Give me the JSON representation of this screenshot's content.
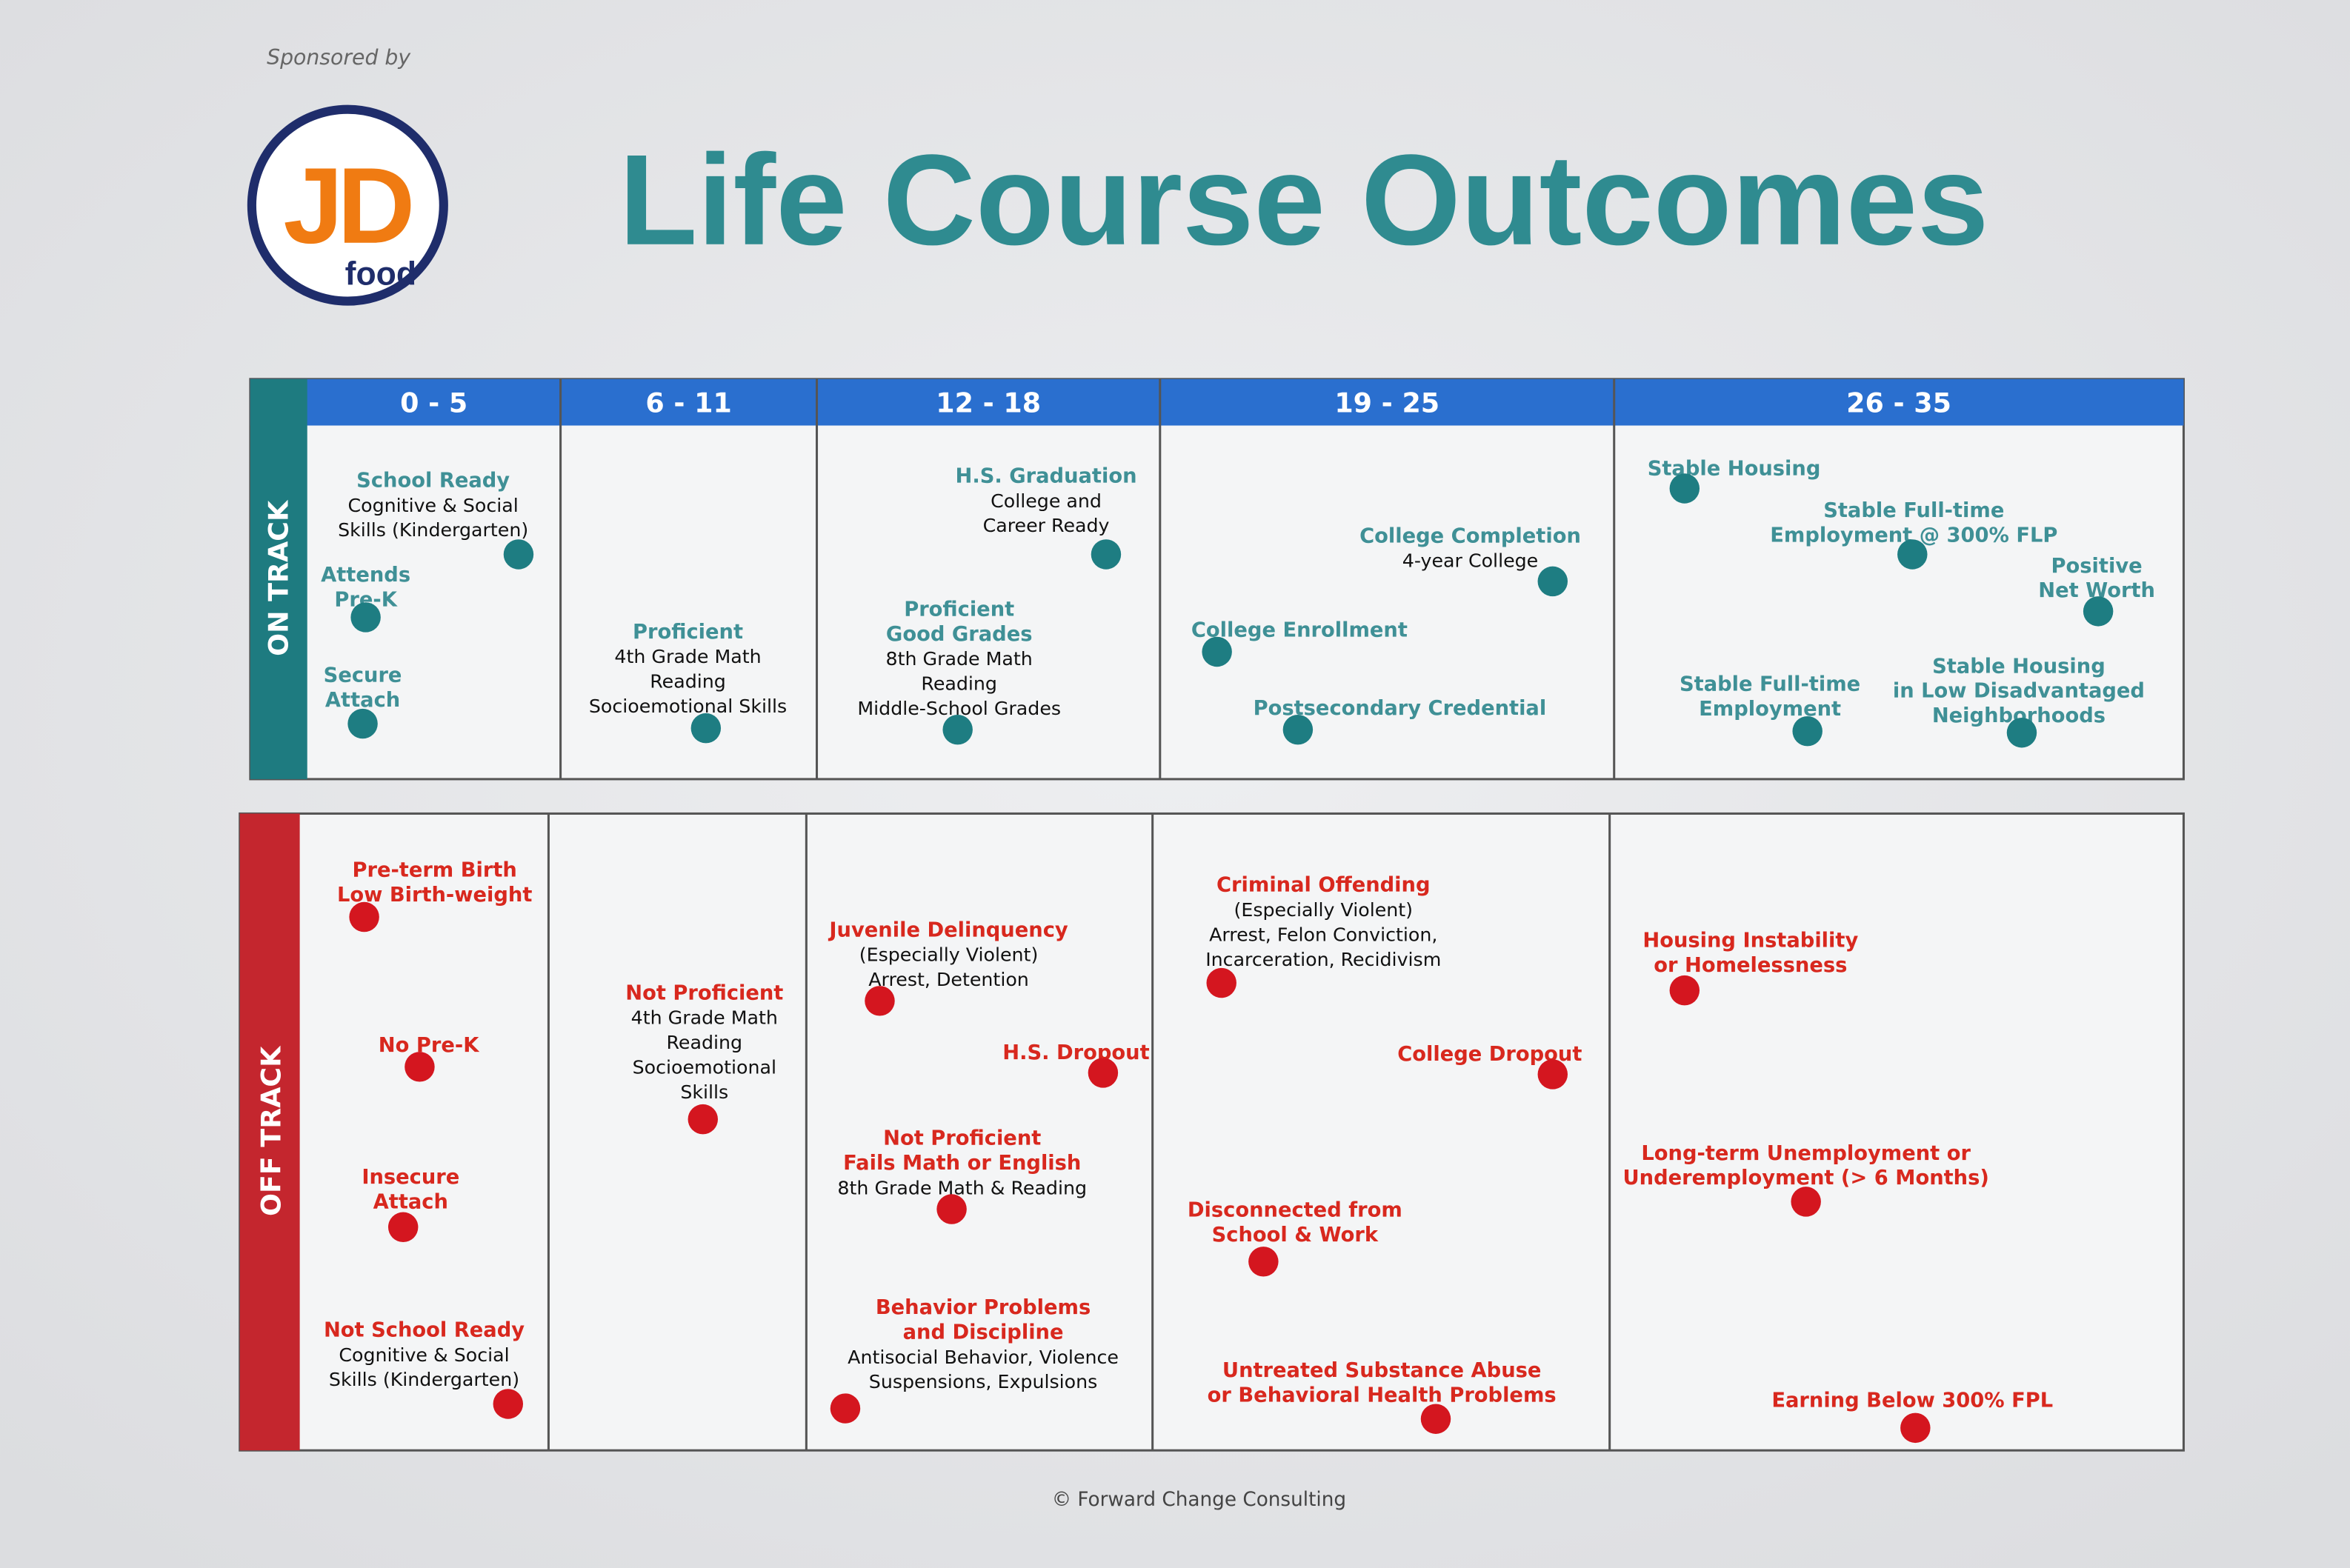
{
  "sponsor": "Sponsored by",
  "logo": {
    "main": "JD",
    "sub": "food"
  },
  "title": "Life Course Outcomes",
  "columns": [
    "0 - 5",
    "6 - 11",
    "12 - 18",
    "19 - 25",
    "26 - 35"
  ],
  "on_track": {
    "label": "ON TRACK",
    "items": [
      {
        "title": [
          "School Ready"
        ],
        "detail": [
          "Cognitive & Social",
          "Skills (Kindergarten)"
        ]
      },
      {
        "title": [
          "Attends",
          "Pre-K"
        ],
        "detail": []
      },
      {
        "title": [
          "Secure",
          "Attach"
        ],
        "detail": []
      },
      {
        "title": [
          "Proficient"
        ],
        "detail": [
          "4th Grade Math",
          "Reading",
          "Socioemotional Skills"
        ]
      },
      {
        "title": [
          "H.S. Graduation"
        ],
        "detail": [
          "College and",
          "Career Ready"
        ]
      },
      {
        "title": [
          "Proficient",
          "Good Grades"
        ],
        "detail": [
          "8th Grade Math",
          "Reading",
          "Middle-School Grades"
        ]
      },
      {
        "title": [
          "College Completion"
        ],
        "detail": [
          "4-year College"
        ]
      },
      {
        "title": [
          "College Enrollment"
        ],
        "detail": []
      },
      {
        "title": [
          "Postsecondary Credential"
        ],
        "detail": []
      },
      {
        "title": [
          "Stable Housing"
        ],
        "detail": []
      },
      {
        "title": [
          "Stable Full-time",
          "Employment @ 300% FLP"
        ],
        "detail": []
      },
      {
        "title": [
          "Positive",
          "Net Worth"
        ],
        "detail": []
      },
      {
        "title": [
          "Stable Full-time",
          "Employment"
        ],
        "detail": []
      },
      {
        "title": [
          "Stable Housing",
          "in Low Disadvantaged",
          "Neighborhoods"
        ],
        "detail": []
      }
    ]
  },
  "off_track": {
    "label": "OFF TRACK",
    "items": [
      {
        "title": [
          "Pre-term Birth",
          "Low Birth-weight"
        ],
        "detail": []
      },
      {
        "title": [
          "No Pre-K"
        ],
        "detail": []
      },
      {
        "title": [
          "Insecure",
          "Attach"
        ],
        "detail": []
      },
      {
        "title": [
          "Not School Ready"
        ],
        "detail": [
          "Cognitive & Social",
          "Skills (Kindergarten)"
        ]
      },
      {
        "title": [
          "Not Proficient"
        ],
        "detail": [
          "4th Grade Math",
          "Reading",
          "Socioemotional",
          "Skills"
        ]
      },
      {
        "title": [
          "Juvenile Delinquency"
        ],
        "detail": [
          "(Especially Violent)",
          "Arrest, Detention"
        ]
      },
      {
        "title": [
          "H.S. Dropout"
        ],
        "detail": []
      },
      {
        "title": [
          "Not Proficient",
          "Fails Math or English"
        ],
        "detail": [
          "8th Grade Math & Reading"
        ]
      },
      {
        "title": [
          "Behavior Problems",
          "and Discipline"
        ],
        "detail": [
          "Antisocial Behavior, Violence",
          "Suspensions, Expulsions"
        ]
      },
      {
        "title": [
          "Criminal Offending"
        ],
        "detail": [
          "(Especially Violent)",
          "Arrest, Felon Conviction,",
          "Incarceration, Recidivism"
        ]
      },
      {
        "title": [
          "College Dropout"
        ],
        "detail": []
      },
      {
        "title": [
          "Disconnected from",
          "School & Work"
        ],
        "detail": []
      },
      {
        "title": [
          "Untreated Substance Abuse",
          "or Behavioral Health Problems"
        ],
        "detail": []
      },
      {
        "title": [
          "Housing Instability",
          "or Homelessness"
        ],
        "detail": []
      },
      {
        "title": [
          "Long-term Unemployment or",
          "Underemployment (> 6 Months)"
        ],
        "detail": []
      },
      {
        "title": [
          "Earning Below 300% FPL"
        ],
        "detail": []
      }
    ]
  },
  "footer": "© Forward Change Consulting"
}
